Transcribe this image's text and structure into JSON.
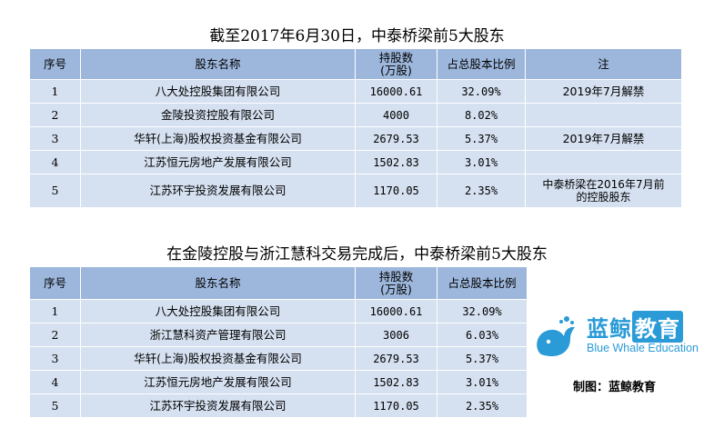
{
  "table1": {
    "title": "截至2017年6月30日，中泰桥梁前5大股东",
    "headers": {
      "seq": "序号",
      "name": "股东名称",
      "shares_1": "持股数",
      "shares_2": "(万股)",
      "ratio": "占总股本比例",
      "note": "注"
    },
    "rows": [
      {
        "seq": "1",
        "name": "八大处控股集团有限公司",
        "shares": "16000.61",
        "ratio": "32.09%",
        "note_1": "2019年7月解禁",
        "note_2": ""
      },
      {
        "seq": "2",
        "name": "金陵投资控股有限公司",
        "shares": "4000",
        "ratio": "8.02%",
        "note_1": "",
        "note_2": ""
      },
      {
        "seq": "3",
        "name": "华轩(上海)股权投资基金有限公司",
        "shares": "2679.53",
        "ratio": "5.37%",
        "note_1": "2019年7月解禁",
        "note_2": ""
      },
      {
        "seq": "4",
        "name": "江苏恒元房地产发展有限公司",
        "shares": "1502.83",
        "ratio": "3.01%",
        "note_1": "",
        "note_2": ""
      },
      {
        "seq": "5",
        "name": "江苏环宇投资发展有限公司",
        "shares": "1170.05",
        "ratio": "2.35%",
        "note_1": "中泰桥梁在2016年7月前",
        "note_2": "的控股股东"
      }
    ]
  },
  "table2": {
    "title": "在金陵控股与浙江慧科交易完成后，中泰桥梁前5大股东",
    "headers": {
      "seq": "序号",
      "name": "股东名称",
      "shares_1": "持股数",
      "shares_2": "(万股)",
      "ratio": "占总股本比例"
    },
    "rows": [
      {
        "seq": "1",
        "name": "八大处控股集团有限公司",
        "shares": "16000.61",
        "ratio": "32.09%"
      },
      {
        "seq": "2",
        "name": "浙江慧科资产管理有限公司",
        "shares": "3006",
        "ratio": "6.03%"
      },
      {
        "seq": "3",
        "name": "华轩(上海)股权投资基金有限公司",
        "shares": "2679.53",
        "ratio": "5.37%"
      },
      {
        "seq": "4",
        "name": "江苏恒元房地产发展有限公司",
        "shares": "1502.83",
        "ratio": "3.01%"
      },
      {
        "seq": "5",
        "name": "江苏环宇投资发展有限公司",
        "shares": "1170.05",
        "ratio": "2.35%"
      }
    ]
  },
  "logo": {
    "cn_1": "蓝鲸",
    "cn_2": "教育",
    "en": "Blue Whale Education",
    "color": "#2a9bd7"
  },
  "credit": "制图：蓝鲸教育",
  "colors": {
    "header_bg": "#9db7dc",
    "cell_bg": "#d5e0f0"
  }
}
